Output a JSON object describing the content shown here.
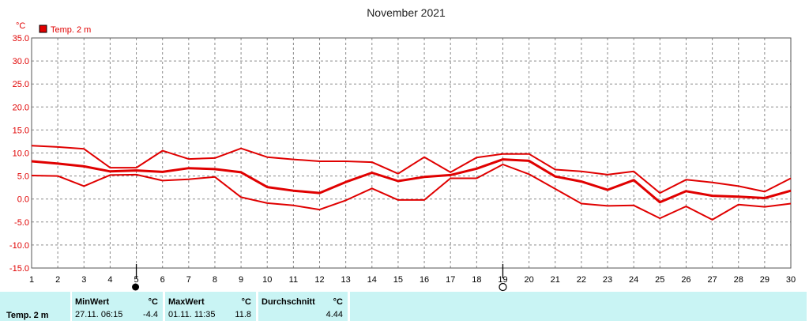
{
  "chart_data": {
    "type": "line",
    "title": "November 2021",
    "unit_label": "°C",
    "legend": {
      "label": "Temp. 2 m",
      "color": "#e00000",
      "placement": "top-left"
    },
    "ylim": [
      -15,
      35
    ],
    "yticks": [
      "35.0",
      "30.0",
      "25.0",
      "20.0",
      "15.0",
      "10.0",
      "5.0",
      "0.0",
      "-5.0",
      "-10.0",
      "-15.0"
    ],
    "xlim": [
      1,
      30
    ],
    "xticks": [
      "1",
      "2",
      "3",
      "4",
      "5",
      "6",
      "7",
      "8",
      "9",
      "10",
      "11",
      "12",
      "13",
      "14",
      "15",
      "16",
      "17",
      "18",
      "19",
      "20",
      "21",
      "22",
      "23",
      "24",
      "25",
      "26",
      "27",
      "28",
      "29",
      "30"
    ],
    "grid": true,
    "x": [
      1,
      2,
      3,
      4,
      5,
      6,
      7,
      8,
      9,
      10,
      11,
      12,
      13,
      14,
      15,
      16,
      17,
      18,
      19,
      20,
      21,
      22,
      23,
      24,
      25,
      26,
      27,
      28,
      29,
      30
    ],
    "series": [
      {
        "role": "max",
        "color": "#e00000",
        "values": [
          11.6,
          11.3,
          10.9,
          6.8,
          6.8,
          10.5,
          8.7,
          8.9,
          11.0,
          9.1,
          8.6,
          8.2,
          8.2,
          8.0,
          5.5,
          9.1,
          5.8,
          9.0,
          9.8,
          9.8,
          6.4,
          6.0,
          5.3,
          6.0,
          1.3,
          4.2,
          3.6,
          2.8,
          1.6,
          4.5
        ]
      },
      {
        "role": "mean",
        "color": "#e00000",
        "bold": true,
        "values": [
          8.2,
          7.7,
          7.1,
          6.0,
          6.2,
          5.9,
          6.7,
          6.5,
          5.8,
          2.6,
          1.8,
          1.3,
          3.7,
          5.7,
          3.9,
          4.8,
          5.2,
          6.6,
          8.6,
          8.3,
          4.9,
          3.8,
          2.0,
          4.1,
          -0.7,
          1.7,
          0.7,
          0.5,
          0.2,
          1.8
        ]
      },
      {
        "role": "min",
        "color": "#e00000",
        "values": [
          5.1,
          5.0,
          2.8,
          5.2,
          5.3,
          4.0,
          4.3,
          4.8,
          0.4,
          -0.9,
          -1.4,
          -2.3,
          -0.3,
          2.3,
          -0.2,
          -0.2,
          4.5,
          4.5,
          7.5,
          5.4,
          2.2,
          -1.0,
          -1.5,
          -1.4,
          -4.2,
          -1.6,
          -4.5,
          -1.2,
          -1.7,
          -1.0
        ]
      }
    ],
    "markers": [
      {
        "day": 5,
        "symbol": "full-moon"
      },
      {
        "day": 19,
        "symbol": "new-moon"
      }
    ]
  },
  "stats": {
    "label": "Temp. 2 m",
    "min_header": "MinWert",
    "min_unit": "°C",
    "min_time": "27.11.  06:15",
    "min_value": "-4.4",
    "max_header": "MaxWert",
    "max_unit": "°C",
    "max_time": "01.11.  11:35",
    "max_value": "11.8",
    "avg_header": "Durchschnitt",
    "avg_unit": "°C",
    "avg_value": "4.44"
  }
}
